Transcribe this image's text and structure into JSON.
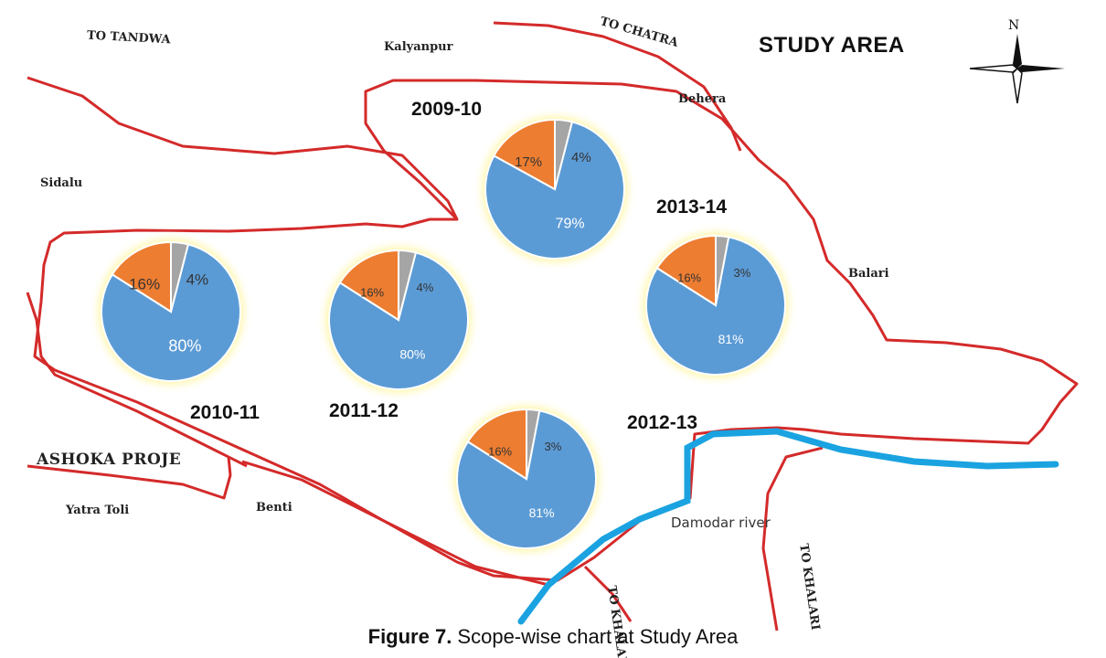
{
  "title": "STUDY AREA",
  "north_label": "N",
  "caption": {
    "figure": "Figure 7.",
    "text": " Scope-wise chart at Study Area"
  },
  "places": {
    "tandwa": "TO TANDWA",
    "kalyanpur": "Kalyanpur",
    "chatra": "TO CHATRA",
    "behera": "Behera",
    "sidalu": "Sidalu",
    "balari": "Balari",
    "ashoka": "ASHOKA PROJE",
    "yatra_toli": "Yatra Toli",
    "benti": "Benti",
    "damodar": "Damodar river",
    "khalari_1": "TO KHALARI",
    "khalari_2": "TO KHALARI"
  },
  "colors": {
    "boundary": "#d42a2a",
    "river": "#1aa3e0",
    "slice_main": "#5b9bd5",
    "slice_second": "#ed7d31",
    "slice_third": "#a5a5a5",
    "glow": "#fff27a"
  },
  "chart_data": [
    {
      "type": "pie",
      "title": "2009-10",
      "values": [
        79,
        17,
        4
      ],
      "labels": [
        "79%",
        "17%",
        "4%"
      ]
    },
    {
      "type": "pie",
      "title": "2010-11",
      "values": [
        80,
        16,
        4
      ],
      "labels": [
        "80%",
        "16%",
        "4%"
      ]
    },
    {
      "type": "pie",
      "title": "2011-12",
      "values": [
        80,
        16,
        4
      ],
      "labels": [
        "80%",
        "16%",
        "4%"
      ]
    },
    {
      "type": "pie",
      "title": "2012-13",
      "values": [
        81,
        16,
        3
      ],
      "labels": [
        "81%",
        "16%",
        "3%"
      ]
    },
    {
      "type": "pie",
      "title": "2013-14",
      "values": [
        81,
        16,
        3
      ],
      "labels": [
        "81%",
        "16%",
        "3%"
      ]
    }
  ]
}
